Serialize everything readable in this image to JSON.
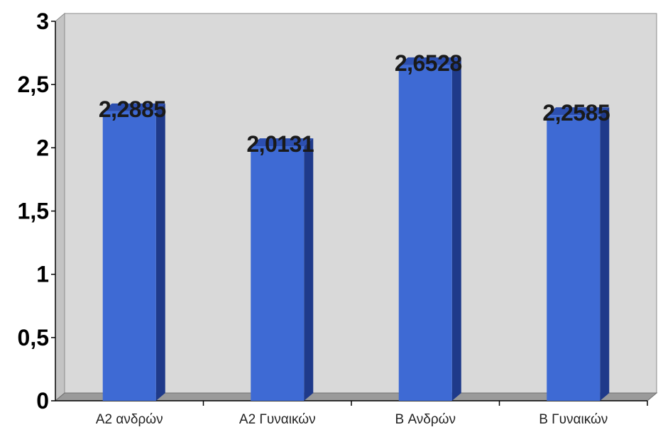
{
  "chart_data": {
    "type": "bar",
    "categories": [
      "A2 ανδρών",
      "A2 Γυναικών",
      "B Ανδρών",
      "B Γυναικών"
    ],
    "values": [
      2.2885,
      2.0131,
      2.6528,
      2.2585
    ],
    "data_labels": [
      "2,2885",
      "2,0131",
      "2,6528",
      "2,2585"
    ],
    "title": "",
    "xlabel": "",
    "ylabel": "",
    "ylim": [
      0,
      3
    ],
    "yticks": [
      {
        "value": 0,
        "label": "0"
      },
      {
        "value": 0.5,
        "label": "0,5"
      },
      {
        "value": 1,
        "label": "1"
      },
      {
        "value": 1.5,
        "label": "1,5"
      },
      {
        "value": 2,
        "label": "2"
      },
      {
        "value": 2.5,
        "label": "2,5"
      },
      {
        "value": 3,
        "label": "3"
      }
    ],
    "grid": false,
    "legend": "none",
    "colors": {
      "bar_front": "#3e6ad4",
      "bar_side": "#1f3a8a",
      "bar_top": "#2c4fb0",
      "plot_background": "#d9d9d9",
      "floor": "#9a9a9a"
    }
  }
}
